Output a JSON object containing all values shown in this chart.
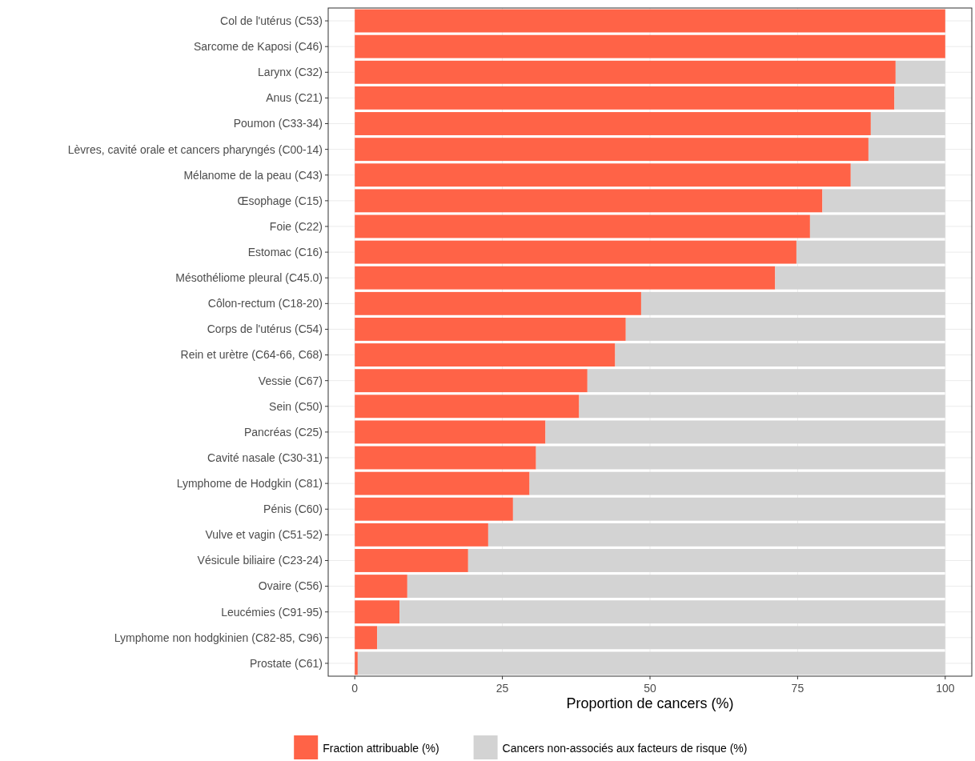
{
  "chart_data": {
    "type": "bar",
    "orientation": "horizontal",
    "stacked": true,
    "xlabel": "Proportion de cancers (%)",
    "categories": [
      "Col de l'utérus (C53)",
      "Sarcome de Kaposi (C46)",
      "Larynx (C32)",
      "Anus (C21)",
      "Poumon (C33-34)",
      "Lèvres, cavité orale et cancers pharyngés (C00-14)",
      "Mélanome de la peau (C43)",
      "Œsophage (C15)",
      "Foie (C22)",
      "Estomac (C16)",
      "Mésothéliome pleural (C45.0)",
      "Côlon-rectum (C18-20)",
      "Corps de l'utérus (C54)",
      "Rein et urètre (C64-66, C68)",
      "Vessie (C67)",
      "Sein (C50)",
      "Pancréas (C25)",
      "Cavité nasale (C30-31)",
      "Lymphome de Hodgkin (C81)",
      "Pénis (C60)",
      "Vulve et vagin (C51-52)",
      "Vésicule biliaire (C23-24)",
      "Ovaire (C56)",
      "Leucémies (C91-95)",
      "Lymphome non hodgkinien (C82-85, C96)",
      "Prostate (C61)"
    ],
    "series": [
      {
        "name": "Fraction attribuable (%)",
        "color": "#ff6347",
        "values": [
          100,
          100,
          91.6,
          91.4,
          87.4,
          87.0,
          84.0,
          79.2,
          77.1,
          74.8,
          71.2,
          48.5,
          45.9,
          44.1,
          39.4,
          38.0,
          32.3,
          30.7,
          29.6,
          26.8,
          22.6,
          19.2,
          8.9,
          7.6,
          3.8,
          0.5
        ]
      },
      {
        "name": "Cancers non-associés aux facteurs de risque (%)",
        "color": "#d3d3d3",
        "values": [
          0,
          0,
          8.4,
          8.6,
          12.6,
          13.0,
          16.0,
          20.8,
          22.9,
          25.2,
          28.8,
          51.5,
          54.1,
          55.9,
          60.6,
          62.0,
          67.7,
          69.3,
          70.4,
          73.2,
          77.4,
          80.8,
          91.1,
          92.4,
          96.2,
          99.5
        ]
      }
    ],
    "xlim": [
      -4.5,
      104.5
    ],
    "xticks": [
      0,
      25,
      50,
      75,
      100
    ],
    "grid": true,
    "legend": "bottom"
  }
}
